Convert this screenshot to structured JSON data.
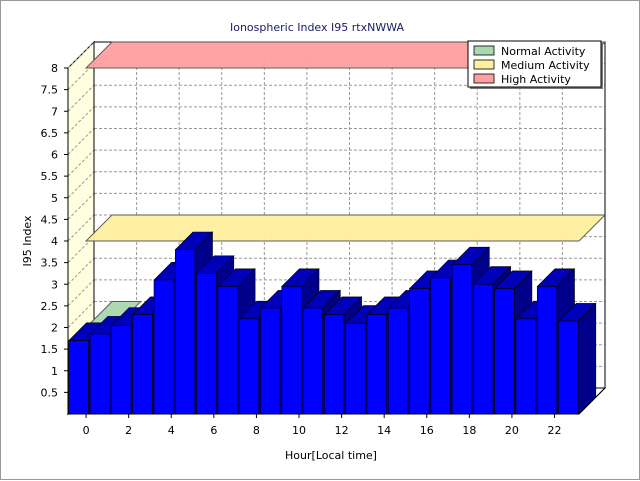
{
  "chart_data": {
    "type": "bar",
    "title": "Ionospheric Index I95 rtxNWWA",
    "xlabel": "Hour[Local time]",
    "ylabel": "I95 Index",
    "ylim": [
      0,
      8
    ],
    "y_ticks": [
      "0.5",
      "1",
      "1.5",
      "2",
      "2.5",
      "3",
      "3.5",
      "4",
      "4.5",
      "5",
      "5.5",
      "6",
      "6.5",
      "7",
      "7.5",
      "8"
    ],
    "x_ticks": [
      "0",
      "2",
      "4",
      "6",
      "8",
      "10",
      "12",
      "14",
      "16",
      "18",
      "20",
      "22"
    ],
    "x": [
      0,
      1,
      2,
      3,
      4,
      5,
      6,
      7,
      8,
      9,
      10,
      11,
      12,
      13,
      14,
      15,
      16,
      17,
      18,
      19,
      20,
      21,
      22,
      23
    ],
    "values": [
      1.7,
      1.85,
      2.05,
      2.3,
      3.1,
      3.8,
      3.25,
      2.95,
      2.2,
      2.45,
      2.95,
      2.45,
      2.3,
      2.1,
      2.3,
      2.45,
      2.9,
      3.15,
      3.45,
      3.0,
      2.9,
      2.2,
      2.95,
      2.15
    ],
    "grid": true,
    "three_d": true,
    "bar_color": "#0000ff",
    "bands": [
      {
        "name": "Normal Activity",
        "y": 2.0,
        "color": "#a8d8b0"
      },
      {
        "name": "Medium Activity",
        "y": 4.0,
        "color": "#fff0a0"
      },
      {
        "name": "High Activity",
        "y": 8.0,
        "color": "#ffa0a0"
      }
    ],
    "legend": {
      "placement": "top-right",
      "entries": [
        "Normal Activity",
        "Medium Activity",
        "High Activity"
      ]
    }
  }
}
